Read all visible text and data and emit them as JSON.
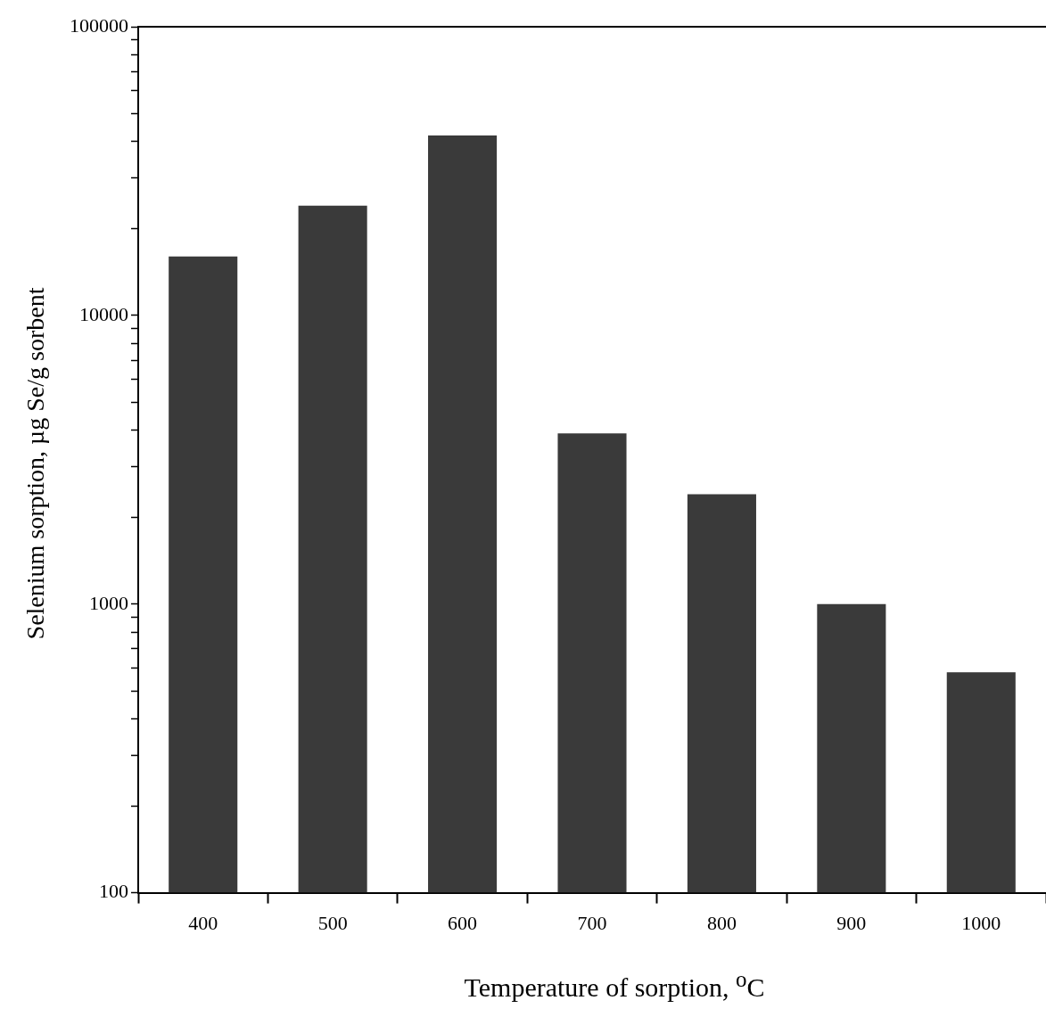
{
  "chart_data": {
    "type": "bar",
    "xlabel": "Temperature of sorption, $^{o}$C",
    "ylabel": "Selenium sorption, µg Se/g sorbent",
    "categories": [
      "400",
      "500",
      "600",
      "700",
      "800",
      "900",
      "1000"
    ],
    "values": [
      16000,
      24000,
      42000,
      3900,
      2400,
      1000,
      580
    ],
    "color": "#3a3a3a",
    "log": "y",
    "ylim": [
      100,
      100000
    ],
    "yticks": [
      100,
      {
        "value": 200,
        "label": null
      },
      {
        "value": 300,
        "label": null
      },
      {
        "value": 400,
        "label": null
      },
      {
        "value": 500,
        "label": null
      },
      {
        "value": 600,
        "label": null
      },
      {
        "value": 700,
        "label": null
      },
      {
        "value": 800,
        "label": null
      },
      {
        "value": 900,
        "label": null
      },
      1000,
      {
        "value": 2000,
        "label": null
      },
      {
        "value": 3000,
        "label": null
      },
      {
        "value": 4000,
        "label": null
      },
      {
        "value": 5000,
        "label": null
      },
      {
        "value": 6000,
        "label": null
      },
      {
        "value": 7000,
        "label": null
      },
      {
        "value": 8000,
        "label": null
      },
      {
        "value": 9000,
        "label": null
      },
      10000,
      {
        "value": 20000,
        "label": null
      },
      {
        "value": 30000,
        "label": null
      },
      {
        "value": 40000,
        "label": null
      },
      {
        "value": 50000,
        "label": null
      },
      {
        "value": 60000,
        "label": null
      },
      {
        "value": 70000,
        "label": null
      },
      {
        "value": 80000,
        "label": null
      },
      {
        "value": 90000,
        "label": null
      },
      100000
    ]
  }
}
